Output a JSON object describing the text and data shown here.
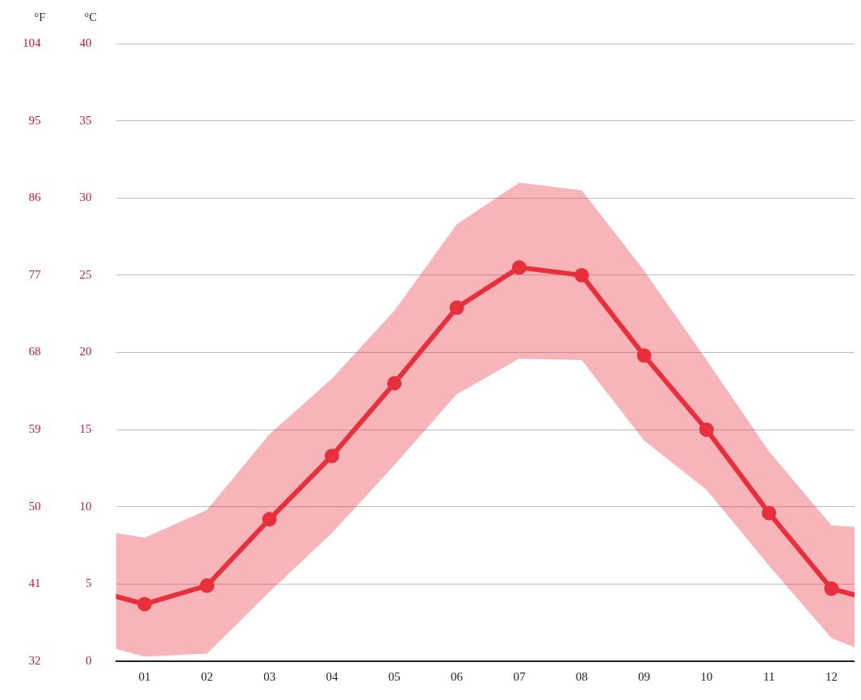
{
  "chart_data": {
    "type": "line",
    "ylabel": "°C",
    "y2label": "°F",
    "x": [
      0.54,
      1,
      2,
      3,
      4,
      5,
      6,
      7,
      8,
      9,
      10,
      11,
      12,
      12.37
    ],
    "xlim": [
      0.54,
      12.37
    ],
    "xticks": [
      {
        "value": 1,
        "label": "01"
      },
      {
        "value": 2,
        "label": "02"
      },
      {
        "value": 3,
        "label": "03"
      },
      {
        "value": 4,
        "label": "04"
      },
      {
        "value": 5,
        "label": "05"
      },
      {
        "value": 6,
        "label": "06"
      },
      {
        "value": 7,
        "label": "07"
      },
      {
        "value": 8,
        "label": "08"
      },
      {
        "value": 9,
        "label": "09"
      },
      {
        "value": 10,
        "label": "10"
      },
      {
        "value": 11,
        "label": "11"
      },
      {
        "value": 12,
        "label": "12"
      }
    ],
    "ylim": [
      0,
      40
    ],
    "yticks": [
      0,
      5,
      10,
      15,
      20,
      25,
      30,
      35,
      40
    ],
    "y2lim": [
      32,
      104
    ],
    "y2ticks": [
      32,
      41,
      50,
      59,
      68,
      77,
      86,
      95,
      104
    ],
    "grid": "y",
    "marker": "circle",
    "line_style": "solid",
    "series": [
      {
        "color": "#e8303c",
        "values": [
          4.2,
          3.7,
          4.9,
          9.2,
          13.3,
          18.0,
          22.9,
          25.5,
          25.0,
          19.8,
          15.0,
          9.6,
          4.7,
          4.3
        ],
        "lower": [
          0.8,
          0.3,
          0.5,
          4.5,
          8.3,
          12.7,
          17.3,
          19.6,
          19.5,
          14.3,
          11.1,
          6.2,
          1.5,
          0.9
        ],
        "upper": [
          8.3,
          8.0,
          9.8,
          14.7,
          18.3,
          22.7,
          28.3,
          31.0,
          30.5,
          25.3,
          19.5,
          13.6,
          8.8,
          8.7
        ]
      }
    ]
  }
}
